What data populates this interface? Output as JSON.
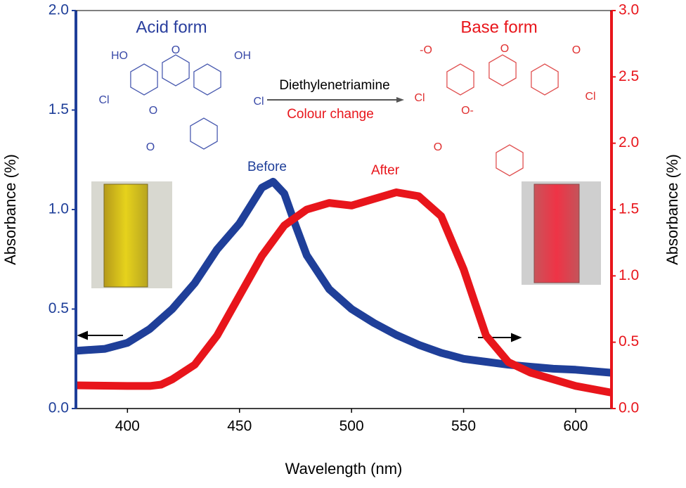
{
  "chart_data": {
    "type": "line",
    "xlabel": "Wavelength (nm)",
    "ylabel": "Absorbance (%)",
    "y2label": "Absorbance (%)",
    "xlim": [
      377,
      616
    ],
    "xticks": [
      400,
      450,
      500,
      550,
      600
    ],
    "ylim": [
      0,
      2
    ],
    "yticks": [
      {
        "value": 0,
        "label": "0.0"
      },
      {
        "value": 0.5,
        "label": "0.5"
      },
      {
        "value": 1,
        "label": "1.0"
      },
      {
        "value": 1.5,
        "label": "1.5"
      },
      {
        "value": 2,
        "label": "2.0"
      }
    ],
    "y2lim": [
      0,
      3
    ],
    "y2ticks": [
      {
        "value": 0,
        "label": "0.0"
      },
      {
        "value": 0.5,
        "label": "0.5"
      },
      {
        "value": 1,
        "label": "1.0"
      },
      {
        "value": 1.5,
        "label": "1.5"
      },
      {
        "value": 2,
        "label": "2.0"
      },
      {
        "value": 2.5,
        "label": "2.5"
      },
      {
        "value": 3,
        "label": "3.0"
      }
    ],
    "series": [
      {
        "name": "Before",
        "color": "#1f3f99",
        "x": [
          377,
          390,
          400,
          410,
          420,
          430,
          440,
          450,
          455,
          460,
          465,
          470,
          475,
          480,
          490,
          500,
          510,
          520,
          530,
          540,
          550,
          560,
          570,
          580,
          590,
          600,
          616
        ],
        "values": [
          0.29,
          0.3,
          0.33,
          0.4,
          0.5,
          0.63,
          0.8,
          0.93,
          1.02,
          1.11,
          1.14,
          1.08,
          0.92,
          0.77,
          0.6,
          0.5,
          0.43,
          0.37,
          0.32,
          0.28,
          0.25,
          0.235,
          0.22,
          0.21,
          0.2,
          0.195,
          0.18
        ]
      },
      {
        "name": "After",
        "color": "#e8151b",
        "axis": "y2",
        "x": [
          377,
          400,
          410,
          415,
          420,
          430,
          440,
          450,
          460,
          470,
          480,
          490,
          500,
          510,
          520,
          530,
          540,
          550,
          555,
          560,
          570,
          580,
          590,
          600,
          616
        ],
        "values": [
          0.175,
          0.17,
          0.17,
          0.18,
          0.22,
          0.33,
          0.55,
          0.85,
          1.15,
          1.38,
          1.5,
          1.55,
          1.53,
          1.58,
          1.63,
          1.6,
          1.45,
          1.05,
          0.8,
          0.55,
          0.35,
          0.27,
          0.22,
          0.17,
          0.12
        ]
      }
    ],
    "annotations": [
      "Acid form",
      "Base form",
      "Diethylenetriamine",
      "Colour change"
    ],
    "structures": {
      "acid_labels": [
        "HO",
        "O",
        "OH",
        "Cl",
        "Cl",
        "O",
        "O"
      ],
      "base_labels": [
        "-O",
        "O",
        "O",
        "Cl",
        "Cl",
        "O-",
        "O"
      ]
    }
  }
}
